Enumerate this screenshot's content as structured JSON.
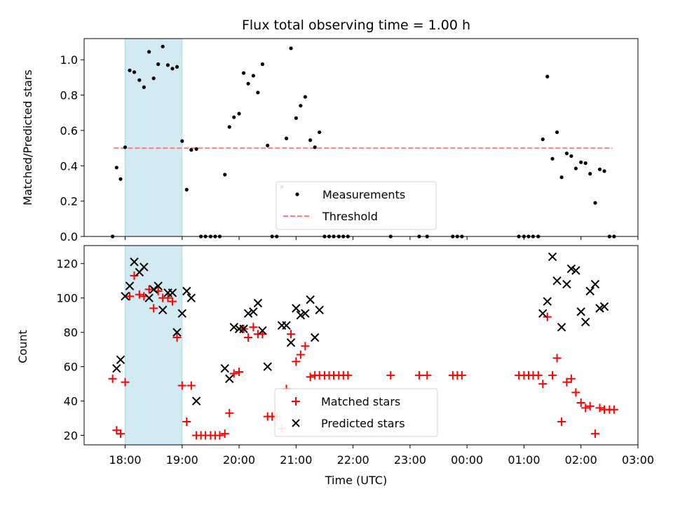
{
  "chart_data": [
    {
      "type": "scatter",
      "title": "Flux total observing time = 1.00 h",
      "xlabel": "",
      "ylabel": "Matched/Predicted stars",
      "ylim": [
        0,
        1.12
      ],
      "yticks": [
        "0.0",
        "0.2",
        "0.4",
        "0.6",
        "0.8",
        "1.0"
      ],
      "xlim_hours": [
        17.28,
        27.0
      ],
      "highlight_span_hours": [
        18.0,
        19.0
      ],
      "highlight_color": "#add8e6",
      "threshold": {
        "name": "Threshold",
        "y": 0.5,
        "x_range_hours": [
          17.8,
          26.55
        ],
        "color": "#ff7f7f"
      },
      "series": [
        {
          "name": "Measurements",
          "marker": "dot",
          "color": "#000000",
          "x_hours": [
            17.78,
            17.85,
            17.92,
            18.0,
            18.08,
            18.16,
            18.25,
            18.33,
            18.42,
            18.5,
            18.58,
            18.66,
            18.75,
            18.83,
            18.91,
            19.0,
            19.08,
            19.16,
            19.25,
            19.33,
            19.41,
            19.5,
            19.58,
            19.66,
            19.75,
            19.83,
            19.91,
            20.0,
            20.08,
            20.16,
            20.25,
            20.33,
            20.41,
            20.5,
            20.58,
            20.66,
            20.75,
            20.83,
            20.91,
            21.0,
            21.08,
            21.16,
            21.25,
            21.33,
            21.41,
            21.5,
            21.58,
            21.66,
            21.75,
            21.83,
            21.91,
            22.66,
            23.16,
            23.3,
            23.75,
            23.83,
            23.91,
            24.91,
            25.0,
            25.08,
            25.16,
            25.25,
            25.33,
            25.41,
            25.5,
            25.58,
            25.66,
            25.75,
            25.83,
            25.91,
            26.0,
            26.08,
            26.16,
            26.25,
            26.33,
            26.41,
            26.5,
            26.58
          ],
          "y": [
            0.0,
            0.39,
            0.325,
            0.505,
            0.94,
            0.93,
            0.885,
            0.845,
            1.045,
            0.895,
            0.975,
            1.075,
            0.97,
            0.95,
            0.96,
            0.54,
            0.265,
            0.49,
            0.495,
            0.0,
            0.0,
            0.0,
            0.0,
            0.0,
            0.35,
            0.62,
            0.675,
            0.695,
            0.925,
            0.865,
            0.91,
            0.815,
            0.975,
            0.515,
            0.0,
            0.0,
            0.28,
            0.555,
            1.065,
            0.67,
            0.74,
            0.79,
            0.545,
            0.505,
            0.59,
            0.0,
            0.0,
            0.0,
            0.0,
            0.0,
            0.0,
            0.0,
            0.0,
            0.0,
            0.0,
            0.0,
            0.0,
            0.0,
            0.0,
            0.0,
            0.0,
            0.0,
            0.55,
            0.905,
            0.44,
            0.59,
            0.335,
            0.47,
            0.455,
            0.385,
            0.42,
            0.415,
            0.355,
            0.19,
            0.38,
            0.37,
            0.0,
            0.0
          ]
        }
      ],
      "legend": {
        "placement": "lower-center",
        "entries": [
          "Measurements",
          "Threshold"
        ]
      }
    },
    {
      "type": "scatter",
      "title": "",
      "xlabel": "Time (UTC)",
      "ylabel": "Count",
      "ylim": [
        14.5,
        130.5
      ],
      "yticks": [
        "20",
        "40",
        "60",
        "80",
        "100",
        "120"
      ],
      "xlim_hours": [
        17.28,
        27.0
      ],
      "xticks": [
        "18:00",
        "19:00",
        "20:00",
        "21:00",
        "22:00",
        "23:00",
        "00:00",
        "01:00",
        "02:00",
        "03:00"
      ],
      "highlight_span_hours": [
        18.0,
        19.0
      ],
      "highlight_color": "#add8e6",
      "series": [
        {
          "name": "Matched stars",
          "marker": "plus",
          "color": "#ff0000",
          "x_hours": [
            17.78,
            17.85,
            17.92,
            18.0,
            18.08,
            18.16,
            18.25,
            18.33,
            18.42,
            18.5,
            18.58,
            18.66,
            18.75,
            18.83,
            18.91,
            19.0,
            19.08,
            19.16,
            19.25,
            19.33,
            19.41,
            19.5,
            19.58,
            19.66,
            19.75,
            19.83,
            19.91,
            20.0,
            20.08,
            20.16,
            20.25,
            20.33,
            20.41,
            20.5,
            20.58,
            20.66,
            20.75,
            20.83,
            20.91,
            21.0,
            21.08,
            21.16,
            21.25,
            21.33,
            21.41,
            21.5,
            21.58,
            21.66,
            21.75,
            21.83,
            21.91,
            22.66,
            23.16,
            23.3,
            23.75,
            23.83,
            23.91,
            24.91,
            25.0,
            25.08,
            25.16,
            25.25,
            25.33,
            25.41,
            25.5,
            25.58,
            25.66,
            25.75,
            25.83,
            25.91,
            26.0,
            26.08,
            26.16,
            26.25,
            26.33,
            26.41,
            26.5,
            26.58
          ],
          "y": [
            53,
            23,
            21,
            51,
            101,
            113,
            102,
            101,
            105,
            94,
            104,
            100,
            100,
            98,
            77,
            49,
            28,
            49,
            20,
            20,
            20,
            20,
            20,
            20,
            21,
            33,
            56,
            57,
            82,
            77,
            83,
            79,
            79,
            31,
            31,
            31,
            24,
            47,
            79,
            63,
            67,
            72,
            54,
            55,
            55,
            55,
            55,
            55,
            55,
            55,
            55,
            55,
            55,
            55,
            55,
            55,
            55,
            55,
            55,
            55,
            55,
            55,
            50,
            89,
            55,
            65,
            28,
            51,
            53,
            45,
            39,
            36,
            37,
            21,
            36,
            35,
            35,
            35
          ]
        },
        {
          "name": "Predicted stars",
          "marker": "x",
          "color": "#000000",
          "x_hours": [
            17.85,
            17.92,
            18.0,
            18.08,
            18.16,
            18.25,
            18.33,
            18.42,
            18.5,
            18.58,
            18.66,
            18.75,
            18.83,
            18.91,
            19.0,
            19.08,
            19.16,
            19.25,
            19.75,
            19.83,
            19.91,
            20.0,
            20.08,
            20.16,
            20.25,
            20.33,
            20.41,
            20.5,
            20.75,
            20.83,
            20.91,
            21.0,
            21.08,
            21.16,
            21.25,
            21.33,
            21.41,
            25.33,
            25.41,
            25.5,
            25.58,
            25.66,
            25.75,
            25.83,
            25.91,
            26.0,
            26.08,
            26.16,
            26.25,
            26.33,
            26.41
          ],
          "y": [
            59,
            64,
            101,
            107,
            121,
            115,
            118,
            100,
            105,
            107,
            93,
            103,
            103,
            80,
            91,
            104,
            100,
            40,
            59,
            53,
            83,
            82,
            82,
            91,
            92,
            97,
            81,
            60,
            84,
            84,
            74,
            94,
            90,
            91,
            99,
            77,
            93,
            91,
            98,
            124,
            110,
            83,
            108,
            117,
            116,
            92,
            86,
            104,
            108,
            94,
            95
          ]
        }
      ],
      "legend": {
        "placement": "lower-center",
        "entries": [
          "Matched stars",
          "Predicted stars"
        ]
      }
    }
  ]
}
